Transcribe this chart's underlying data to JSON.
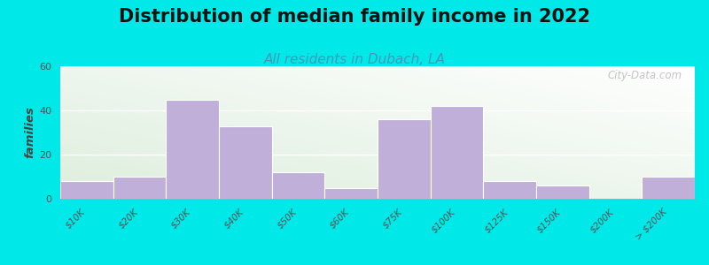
{
  "title": "Distribution of median family income in 2022",
  "subtitle": "All residents in Dubach, LA",
  "ylabel": "families",
  "categories": [
    "$10K",
    "$20K",
    "$30K",
    "$40K",
    "$50K",
    "$60K",
    "$75K",
    "$100K",
    "$125K",
    "$150K",
    "$200K",
    "> $200K"
  ],
  "values": [
    8,
    10,
    45,
    33,
    12,
    5,
    36,
    42,
    8,
    6,
    0,
    10
  ],
  "bar_color": "#c0afd8",
  "bar_edgecolor": "#ffffff",
  "ylim": [
    0,
    60
  ],
  "yticks": [
    0,
    20,
    40,
    60
  ],
  "background_outer": "#00e8e8",
  "plot_bg_top": "#f8fef8",
  "plot_bg_bottom": "#ddeedd",
  "title_fontsize": 15,
  "subtitle_fontsize": 11,
  "subtitle_color": "#4499bb",
  "watermark": "City-Data.com"
}
